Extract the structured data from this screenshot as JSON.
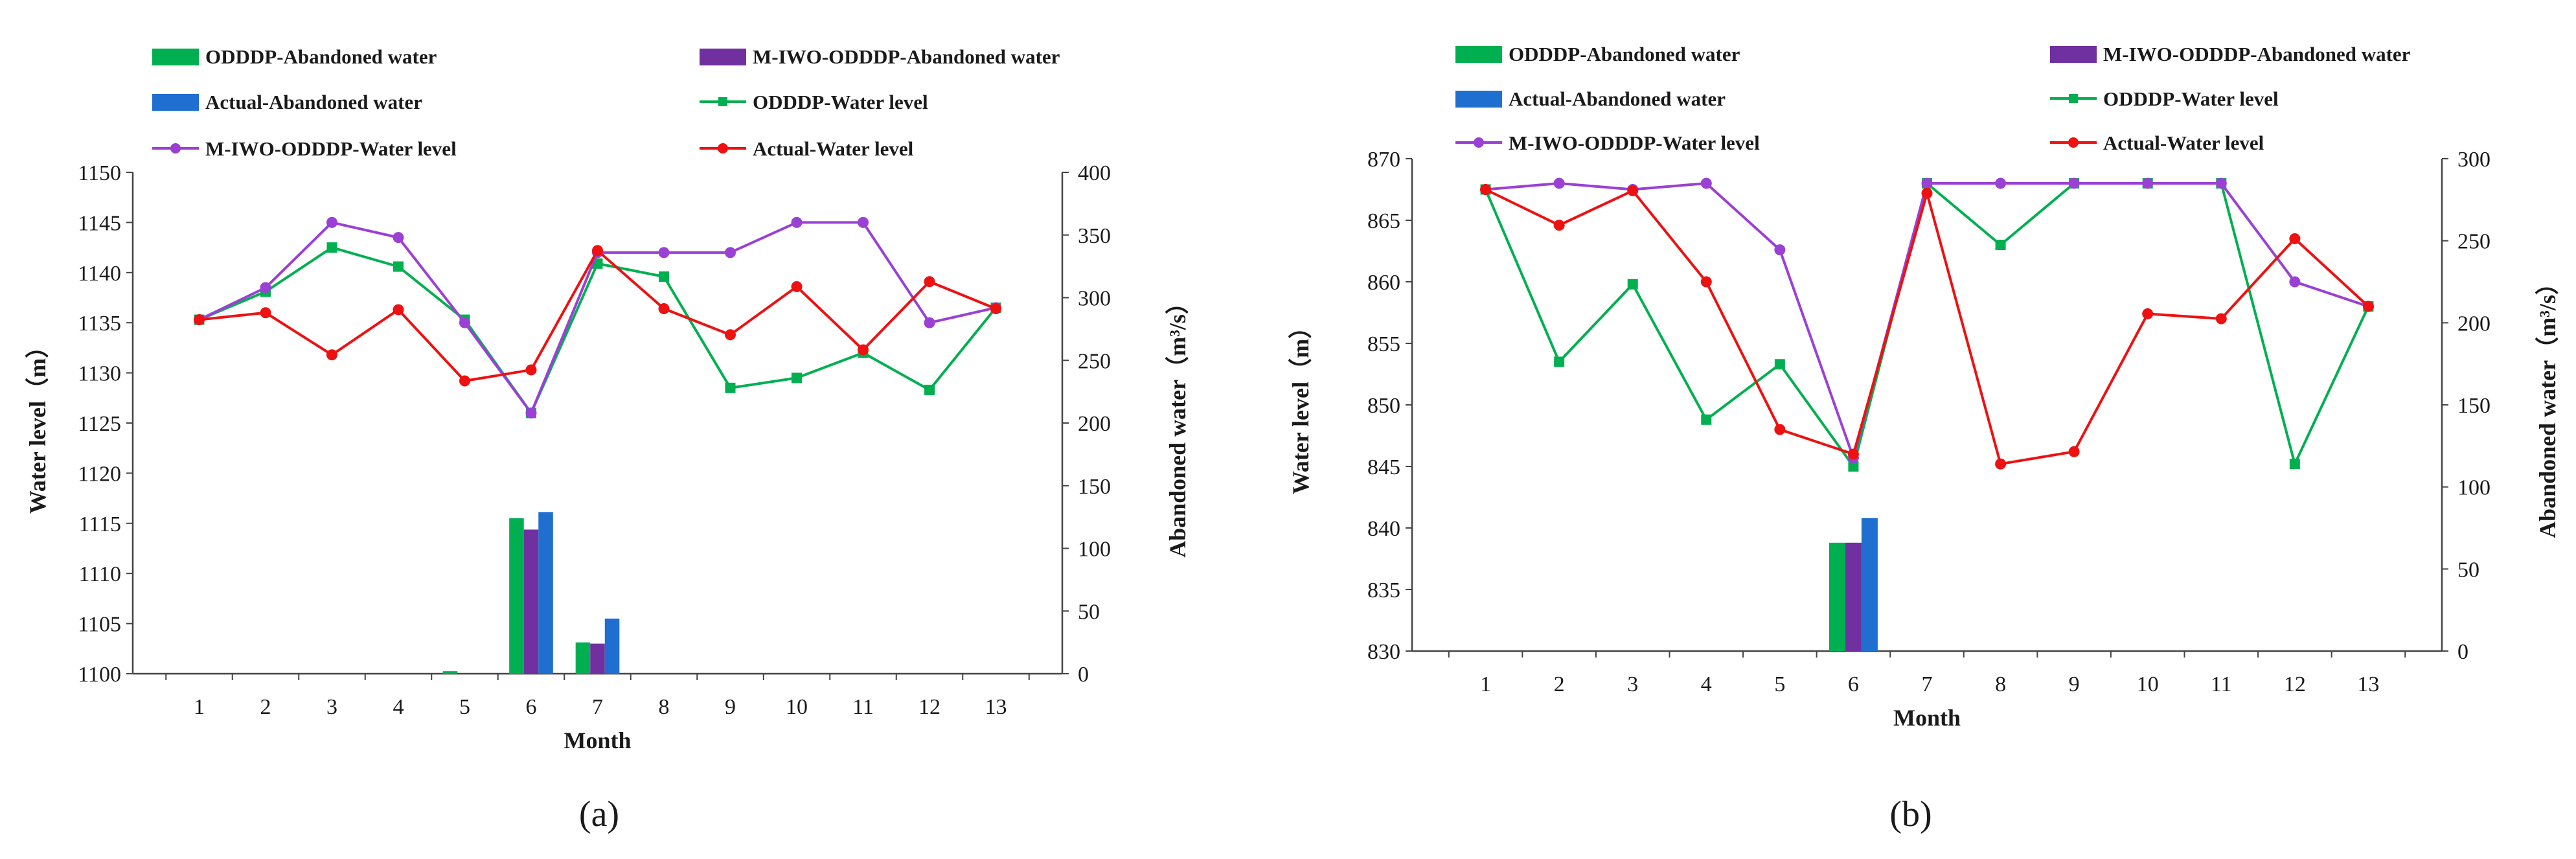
{
  "colors": {
    "odddp": "#00b050",
    "miwo": "#7030a0",
    "actual_bar": "#1f6fd1",
    "odddp_line": "#00b050",
    "miwo_line": "#9b40d4",
    "actual_line": "#ee1111"
  },
  "chart_data": [
    {
      "type": "bar+line",
      "panel_label": "(a)",
      "xlabel": "Month",
      "ylabel_left": "Water level（m）",
      "ylabel_right": "Abandoned water（m³/s）",
      "categories": [
        "1",
        "2",
        "3",
        "4",
        "5",
        "6",
        "7",
        "8",
        "9",
        "10",
        "11",
        "12",
        "13"
      ],
      "ylim_left": [
        1100,
        1150
      ],
      "yticks_left": [
        "1100",
        "1105",
        "1110",
        "1115",
        "1120",
        "1125",
        "1130",
        "1135",
        "1140",
        "1145",
        "1150"
      ],
      "ylim_right": [
        0,
        400
      ],
      "yticks_right": [
        "0",
        "50",
        "100",
        "150",
        "200",
        "250",
        "300",
        "350",
        "400"
      ],
      "legend": [
        {
          "key": "odddp_bar",
          "label": "ODDDP-Abandoned water"
        },
        {
          "key": "miwo_bar",
          "label": "M-IWO-ODDDP-Abandoned water"
        },
        {
          "key": "actual_bar",
          "label": "Actual-Abandoned water"
        },
        {
          "key": "odddp_line",
          "label": "ODDDP-Water level"
        },
        {
          "key": "miwo_line",
          "label": "M-IWO-ODDDP-Water level"
        },
        {
          "key": "actual_line",
          "label": "Actual-Water level"
        }
      ],
      "bar_series": [
        {
          "name": "ODDDP-Abandoned water",
          "values": [
            0,
            0,
            0,
            0,
            2,
            124,
            25,
            0,
            0,
            0,
            0,
            0,
            0
          ]
        },
        {
          "name": "M-IWO-ODDDP-Abandoned water",
          "values": [
            0,
            0,
            0,
            0,
            0,
            115,
            24,
            0,
            0,
            0,
            0,
            0,
            0
          ]
        },
        {
          "name": "Actual-Abandoned water",
          "values": [
            0,
            0,
            0,
            0,
            0,
            129,
            44,
            0,
            0,
            0,
            0,
            0,
            0
          ]
        }
      ],
      "line_series": [
        {
          "name": "ODDDP-Water level",
          "marker": "square",
          "values": [
            1135.3,
            1138.1,
            1142.5,
            1140.6,
            1135.3,
            1126.0,
            1140.9,
            1139.6,
            1128.5,
            1129.5,
            1132.0,
            1128.3,
            1136.5
          ]
        },
        {
          "name": "M-IWO-ODDDP-Water level",
          "marker": "circle",
          "values": [
            1135.3,
            1138.5,
            1145.0,
            1143.5,
            1135.0,
            1126.0,
            1142.0,
            1142.0,
            1142.0,
            1145.0,
            1145.0,
            1135.0,
            1136.5
          ]
        },
        {
          "name": "Actual-Water level",
          "marker": "circle",
          "values": [
            1135.3,
            1136.0,
            1131.8,
            1136.3,
            1129.2,
            1130.3,
            1142.2,
            1136.4,
            1133.8,
            1138.6,
            1132.3,
            1139.1,
            1136.4
          ]
        }
      ]
    },
    {
      "type": "bar+line",
      "panel_label": "(b)",
      "xlabel": "Month",
      "ylabel_left": "Water level（m）",
      "ylabel_right": "Abandoned water（m³/s）",
      "categories": [
        "1",
        "2",
        "3",
        "4",
        "5",
        "6",
        "7",
        "8",
        "9",
        "10",
        "11",
        "12",
        "13"
      ],
      "ylim_left": [
        830,
        870
      ],
      "yticks_left": [
        "830",
        "835",
        "840",
        "845",
        "850",
        "855",
        "860",
        "865",
        "870"
      ],
      "ylim_right": [
        0,
        300
      ],
      "yticks_right": [
        "0",
        "50",
        "100",
        "150",
        "200",
        "250",
        "300"
      ],
      "legend": [
        {
          "key": "odddp_bar",
          "label": "ODDDP-Abandoned water"
        },
        {
          "key": "miwo_bar",
          "label": "M-IWO-ODDDP-Abandoned water"
        },
        {
          "key": "actual_bar",
          "label": "Actual-Abandoned water"
        },
        {
          "key": "odddp_line",
          "label": "ODDDP-Water level"
        },
        {
          "key": "miwo_line",
          "label": "M-IWO-ODDDP-Water level"
        },
        {
          "key": "actual_line",
          "label": "Actual-Water level"
        }
      ],
      "bar_series": [
        {
          "name": "ODDDP-Abandoned water",
          "values": [
            0,
            0,
            0,
            0,
            0,
            66,
            0,
            0,
            0,
            0,
            0,
            0,
            0
          ]
        },
        {
          "name": "M-IWO-ODDDP-Abandoned water",
          "values": [
            0,
            0,
            0,
            0,
            0,
            66,
            0,
            0,
            0,
            0,
            0,
            0,
            0
          ]
        },
        {
          "name": "Actual-Abandoned water",
          "values": [
            0,
            0,
            0,
            0,
            0,
            81,
            0,
            0,
            0,
            0,
            0,
            0,
            0
          ]
        }
      ],
      "line_series": [
        {
          "name": "ODDDP-Water level",
          "marker": "square",
          "values": [
            867.5,
            853.5,
            859.8,
            848.8,
            853.3,
            845.0,
            868.0,
            863.0,
            868.0,
            868.0,
            868.0,
            845.2,
            858.0
          ]
        },
        {
          "name": "M-IWO-ODDDP-Water level",
          "marker": "circle",
          "values": [
            867.5,
            868.0,
            867.5,
            868.0,
            862.6,
            845.7,
            868.0,
            868.0,
            868.0,
            868.0,
            868.0,
            860.0,
            858.0
          ]
        },
        {
          "name": "Actual-Water level",
          "marker": "circle",
          "values": [
            867.5,
            864.6,
            867.4,
            860.0,
            848.0,
            846.0,
            867.2,
            845.2,
            846.2,
            857.4,
            857.0,
            863.5,
            858.0
          ]
        }
      ]
    }
  ]
}
